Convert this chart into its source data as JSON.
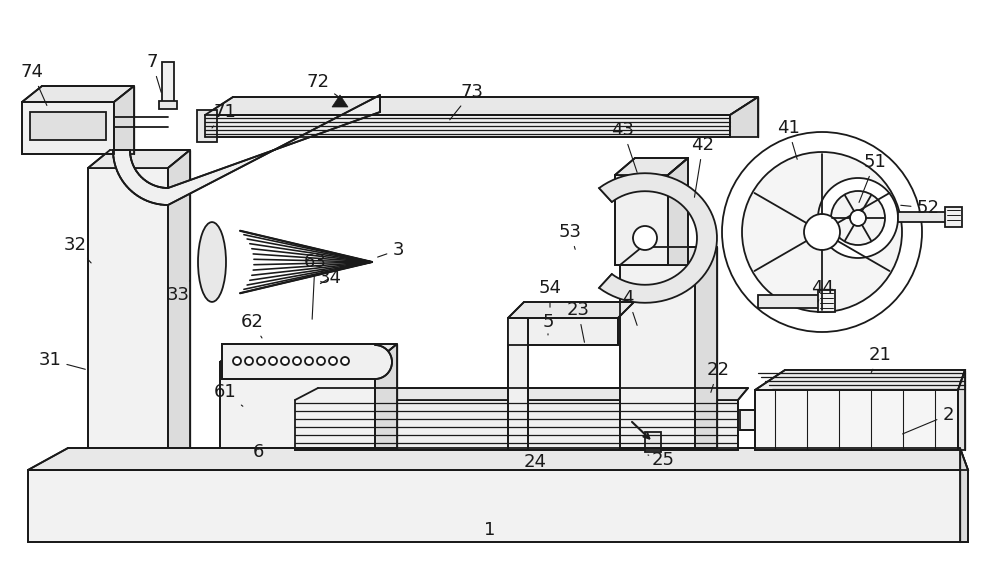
{
  "bg_color": "#ffffff",
  "line_color": "#1a1a1a",
  "lw": 1.3,
  "figsize": [
    10.0,
    5.65
  ],
  "dpi": 100,
  "label_fs": 13,
  "label_positions": {
    "1": [
      490,
      530,
      490,
      530
    ],
    "2": [
      948,
      415,
      900,
      435
    ],
    "21": [
      880,
      355,
      870,
      375
    ],
    "22": [
      718,
      370,
      710,
      395
    ],
    "23": [
      578,
      310,
      585,
      345
    ],
    "24": [
      535,
      462,
      545,
      450
    ],
    "25": [
      663,
      460,
      648,
      455
    ],
    "3": [
      398,
      250,
      375,
      258
    ],
    "31": [
      50,
      360,
      88,
      370
    ],
    "32": [
      75,
      245,
      93,
      265
    ],
    "33": [
      178,
      295,
      192,
      278
    ],
    "34": [
      330,
      278,
      318,
      285
    ],
    "4": [
      628,
      298,
      638,
      328
    ],
    "41": [
      788,
      128,
      798,
      162
    ],
    "42": [
      703,
      145,
      694,
      200
    ],
    "43": [
      623,
      130,
      638,
      175
    ],
    "44": [
      823,
      288,
      818,
      302
    ],
    "5": [
      548,
      322,
      548,
      335
    ],
    "51": [
      875,
      162,
      858,
      205
    ],
    "52": [
      928,
      208,
      898,
      205
    ],
    "53": [
      570,
      232,
      576,
      252
    ],
    "54": [
      550,
      288,
      550,
      310
    ],
    "6": [
      258,
      452,
      260,
      445
    ],
    "61": [
      225,
      392,
      245,
      408
    ],
    "62": [
      252,
      322,
      262,
      338
    ],
    "63": [
      315,
      262,
      312,
      322
    ],
    "7": [
      152,
      62,
      162,
      95
    ],
    "71": [
      225,
      112,
      212,
      128
    ],
    "72": [
      318,
      82,
      343,
      100
    ],
    "73": [
      472,
      92,
      448,
      122
    ],
    "74": [
      32,
      72,
      48,
      108
    ]
  }
}
